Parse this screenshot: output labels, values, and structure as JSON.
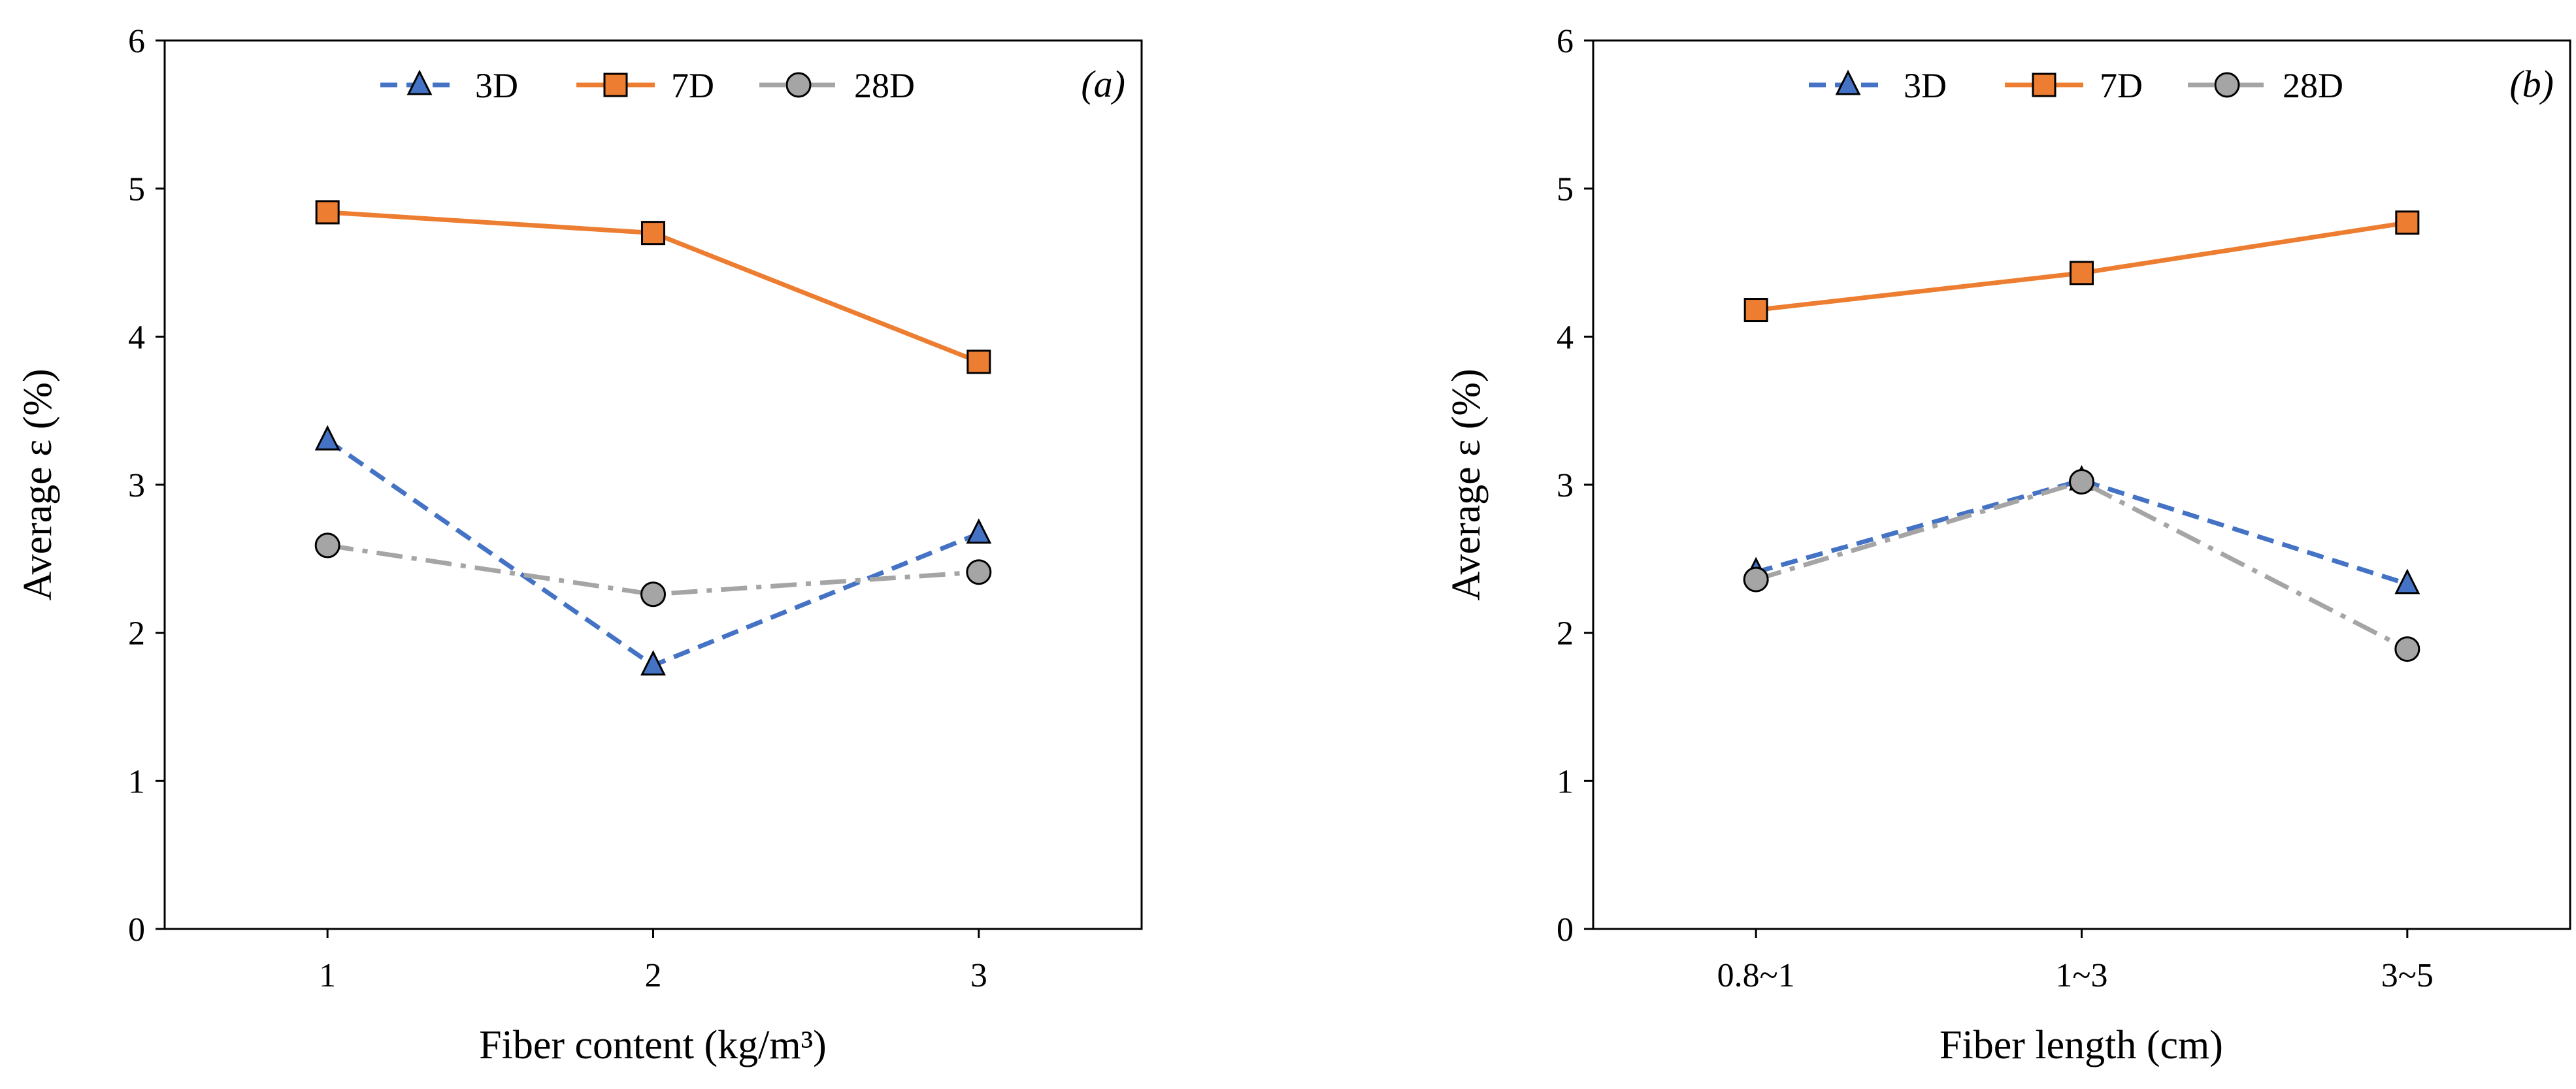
{
  "chart_data": [
    {
      "type": "line",
      "panel_label": "(a)",
      "xlabel": "Fiber content (kg/m³)",
      "ylabel": "Average ε (%)",
      "categories": [
        "1",
        "2",
        "3"
      ],
      "ylim": [
        0,
        6
      ],
      "yticks": [
        "0",
        "1",
        "2",
        "3",
        "4",
        "5",
        "6"
      ],
      "grid": false,
      "legend_position": "top",
      "series": [
        {
          "name": "3D",
          "values": [
            3.3,
            1.78,
            2.67
          ],
          "color": "#4472C4",
          "marker": "triangle",
          "line": "dashed"
        },
        {
          "name": "7D",
          "values": [
            4.84,
            4.7,
            3.83
          ],
          "color": "#ED7D31",
          "marker": "square",
          "line": "solid"
        },
        {
          "name": "28D",
          "values": [
            2.59,
            2.26,
            2.41
          ],
          "color": "#A5A5A5",
          "marker": "circle",
          "line": "dash-dot"
        }
      ]
    },
    {
      "type": "line",
      "panel_label": "(b)",
      "xlabel": "Fiber length (cm)",
      "ylabel": "Average ε (%)",
      "categories": [
        "0.8~1",
        "1~3",
        "3~5"
      ],
      "ylim": [
        0,
        6
      ],
      "yticks": [
        "0",
        "1",
        "2",
        "3",
        "4",
        "5",
        "6"
      ],
      "grid": false,
      "legend_position": "top",
      "series": [
        {
          "name": "3D",
          "values": [
            2.41,
            3.03,
            2.33
          ],
          "color": "#4472C4",
          "marker": "triangle",
          "line": "dashed"
        },
        {
          "name": "7D",
          "values": [
            4.18,
            4.43,
            4.77
          ],
          "color": "#ED7D31",
          "marker": "square",
          "line": "solid"
        },
        {
          "name": "28D",
          "values": [
            2.36,
            3.02,
            1.89
          ],
          "color": "#A5A5A5",
          "marker": "circle",
          "line": "dash-dot"
        }
      ]
    }
  ]
}
